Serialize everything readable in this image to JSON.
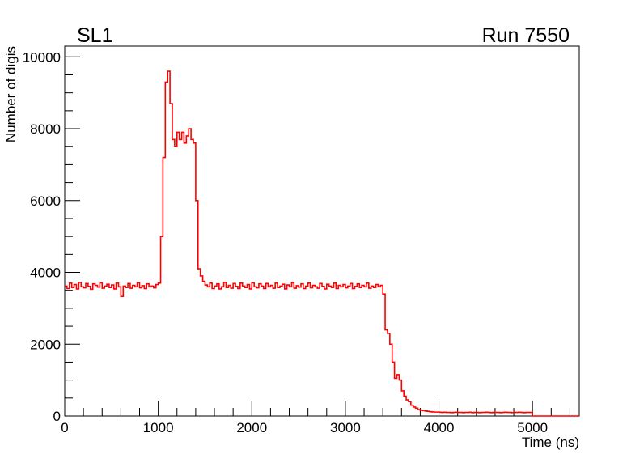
{
  "chart_data": {
    "type": "line",
    "style": "step-histogram",
    "title": "SL1",
    "annotation": "Run 7550",
    "xlabel": "Time (ns)",
    "ylabel": "Number of digis",
    "xlim": [
      0,
      5500
    ],
    "ylim": [
      0,
      10300
    ],
    "x_ticks": [
      0,
      1000,
      2000,
      3000,
      4000,
      5000
    ],
    "x_tick_labels": [
      "0",
      "1000",
      "2000",
      "3000",
      "4000",
      "5000"
    ],
    "y_ticks": [
      0,
      2000,
      4000,
      6000,
      8000,
      10000
    ],
    "y_tick_labels": [
      "0",
      "2000",
      "4000",
      "6000",
      "8000",
      "10000"
    ],
    "grid": false,
    "line_color": "#ff0000",
    "bin_width": 25,
    "series": [
      {
        "name": "SL1",
        "values": [
          3620,
          3550,
          3700,
          3580,
          3660,
          3540,
          3720,
          3600,
          3570,
          3690,
          3610,
          3530,
          3680,
          3640,
          3590,
          3710,
          3560,
          3620,
          3670,
          3580,
          3650,
          3540,
          3700,
          3600,
          3330,
          3620,
          3580,
          3690,
          3560,
          3640,
          3600,
          3710,
          3570,
          3630,
          3550,
          3680,
          3600,
          3620,
          3570,
          3660,
          3700,
          5000,
          7200,
          9300,
          9600,
          8700,
          7700,
          7500,
          7900,
          7700,
          7900,
          7600,
          7800,
          8000,
          7700,
          7600,
          6000,
          4100,
          3900,
          3750,
          3650,
          3600,
          3700,
          3550,
          3620,
          3680,
          3540,
          3600,
          3720,
          3580,
          3640,
          3560,
          3690,
          3610,
          3550,
          3700,
          3620,
          3580,
          3660,
          3540,
          3710,
          3600,
          3570,
          3680,
          3620,
          3550,
          3690,
          3600,
          3640,
          3560,
          3700,
          3580,
          3620,
          3670,
          3540,
          3650,
          3600,
          3710,
          3560,
          3630,
          3590,
          3680,
          3550,
          3620,
          3700,
          3570,
          3640,
          3600,
          3560,
          3690,
          3610,
          3540,
          3670,
          3620,
          3580,
          3700,
          3550,
          3640,
          3600,
          3660,
          3570,
          3620,
          3690,
          3550,
          3610,
          3680,
          3580,
          3640,
          3600,
          3700,
          3560,
          3620,
          3580,
          3660,
          3600,
          3640,
          3400,
          2400,
          2300,
          2000,
          1500,
          1050,
          1150,
          1000,
          700,
          550,
          450,
          400,
          300,
          250,
          220,
          180,
          160,
          150,
          140,
          130,
          120,
          115,
          110,
          110,
          105,
          100,
          105,
          100,
          100,
          95,
          100,
          105,
          100,
          100,
          95,
          100,
          100,
          105,
          95,
          100,
          100,
          95,
          100,
          100,
          105,
          100,
          95,
          100,
          100,
          100,
          95,
          100,
          105,
          100,
          100,
          95,
          100,
          100,
          105,
          100,
          95,
          100,
          100,
          100,
          0,
          0,
          0,
          0,
          0,
          0,
          0,
          0,
          0,
          0,
          0,
          0,
          0,
          0,
          0,
          0,
          0,
          0,
          0,
          0
        ]
      }
    ]
  }
}
